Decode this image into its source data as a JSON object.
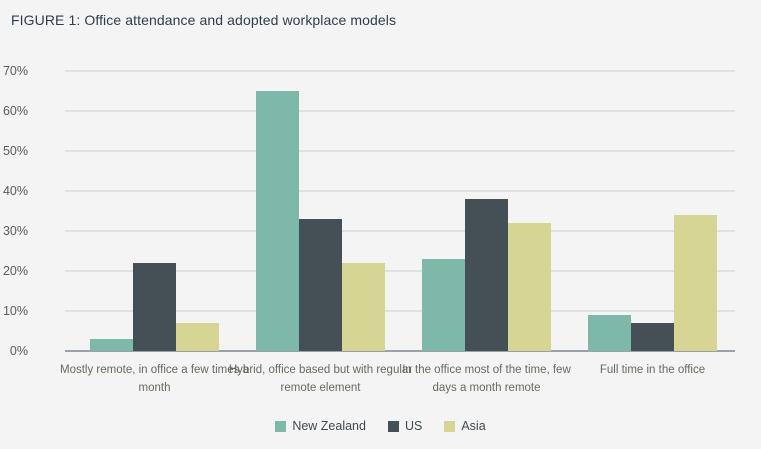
{
  "figure": {
    "title": "FIGURE 1: Office attendance and adopted workplace models"
  },
  "colors": {
    "background": "#f4f4f4",
    "new_zealand": "#7eb8a9",
    "us": "#445056",
    "asia": "#d6d593",
    "gridline": "#dde2e5",
    "axis_line": "#9aa2a8",
    "title_text": "#2e3d4d",
    "ytick_text": "#565c60",
    "category_text": "#68695f",
    "legend_text": "#3e4a52"
  },
  "chart_data": {
    "type": "bar",
    "title": "FIGURE 1: Office attendance and adopted workplace models",
    "categories": [
      "Mostly remote, in office a few times a month",
      "Hybrid, office based but with regular remote element",
      "In the office most of the time, few days a month remote",
      "Full time in the office"
    ],
    "series": [
      {
        "name": "New Zealand",
        "color_key": "new_zealand",
        "values": [
          3,
          65,
          23,
          9
        ]
      },
      {
        "name": "US",
        "color_key": "us",
        "values": [
          22,
          33,
          38,
          7
        ]
      },
      {
        "name": "Asia",
        "color_key": "asia",
        "values": [
          7,
          22,
          32,
          34
        ]
      }
    ],
    "xlabel": "",
    "ylabel": "",
    "ylim": [
      0,
      70
    ],
    "ytick_step": 10,
    "ytick_labels": [
      "0%",
      "10%",
      "20%",
      "30%",
      "40%",
      "50%",
      "60%",
      "70%"
    ],
    "grid": true,
    "legend_position": "bottom"
  }
}
